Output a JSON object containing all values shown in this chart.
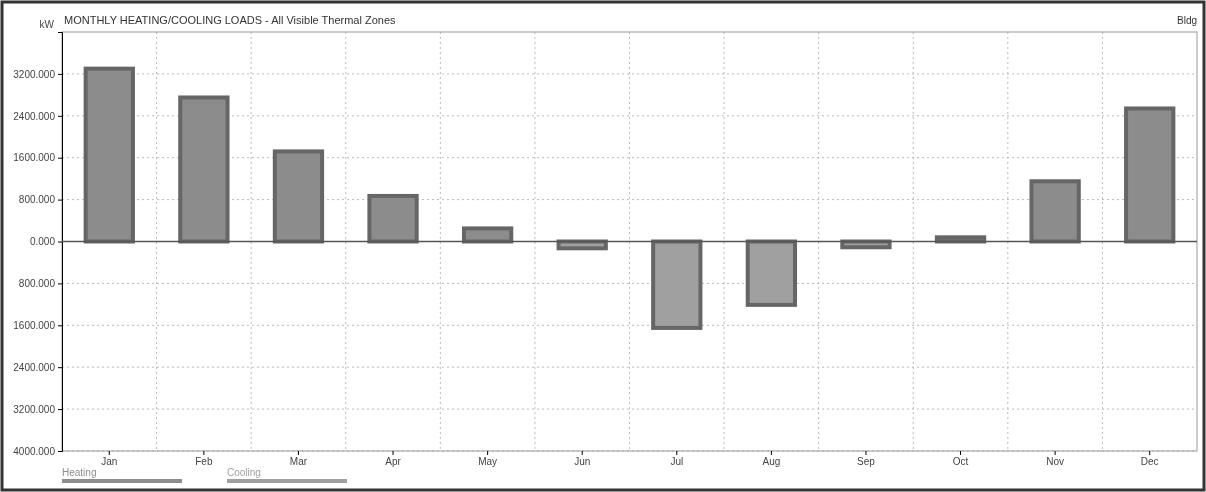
{
  "chart_data": {
    "type": "bar",
    "title": "MONTHLY HEATING/COOLING LOADS - All Visible Thermal Zones",
    "ylabel": "kW",
    "annotations": [
      "Bldg"
    ],
    "categories": [
      "Jan",
      "Feb",
      "Mar",
      "Apr",
      "May",
      "Jun",
      "Jul",
      "Aug",
      "Sep",
      "Oct",
      "Nov",
      "Dec"
    ],
    "stacked": true,
    "series": [
      {
        "name": "Heating",
        "color": "#8c8c8c",
        "values": [
          3300,
          2750,
          1720,
          870,
          250,
          null,
          null,
          null,
          null,
          80,
          1150,
          2540
        ]
      },
      {
        "name": "Cooling",
        "color": "#a0a0a0",
        "values": [
          null,
          null,
          null,
          null,
          null,
          -130,
          -1650,
          -1210,
          -110,
          null,
          null,
          null
        ]
      }
    ],
    "ylim": [
      -4000,
      4000
    ],
    "yticks": [
      {
        "value": -4000,
        "label": "4000.000"
      },
      {
        "value": -3200,
        "label": "3200.000"
      },
      {
        "value": -2400,
        "label": "2400.000"
      },
      {
        "value": -1600,
        "label": "1600.000"
      },
      {
        "value": -800,
        "label": "800.000"
      },
      {
        "value": 0,
        "label": "0.000"
      },
      {
        "value": 800,
        "label": "800.000"
      },
      {
        "value": 1600,
        "label": "1600.000"
      },
      {
        "value": 2400,
        "label": "2400.000"
      },
      {
        "value": 3200,
        "label": "3200.000"
      }
    ],
    "grid": true,
    "legend": "bottom left"
  }
}
